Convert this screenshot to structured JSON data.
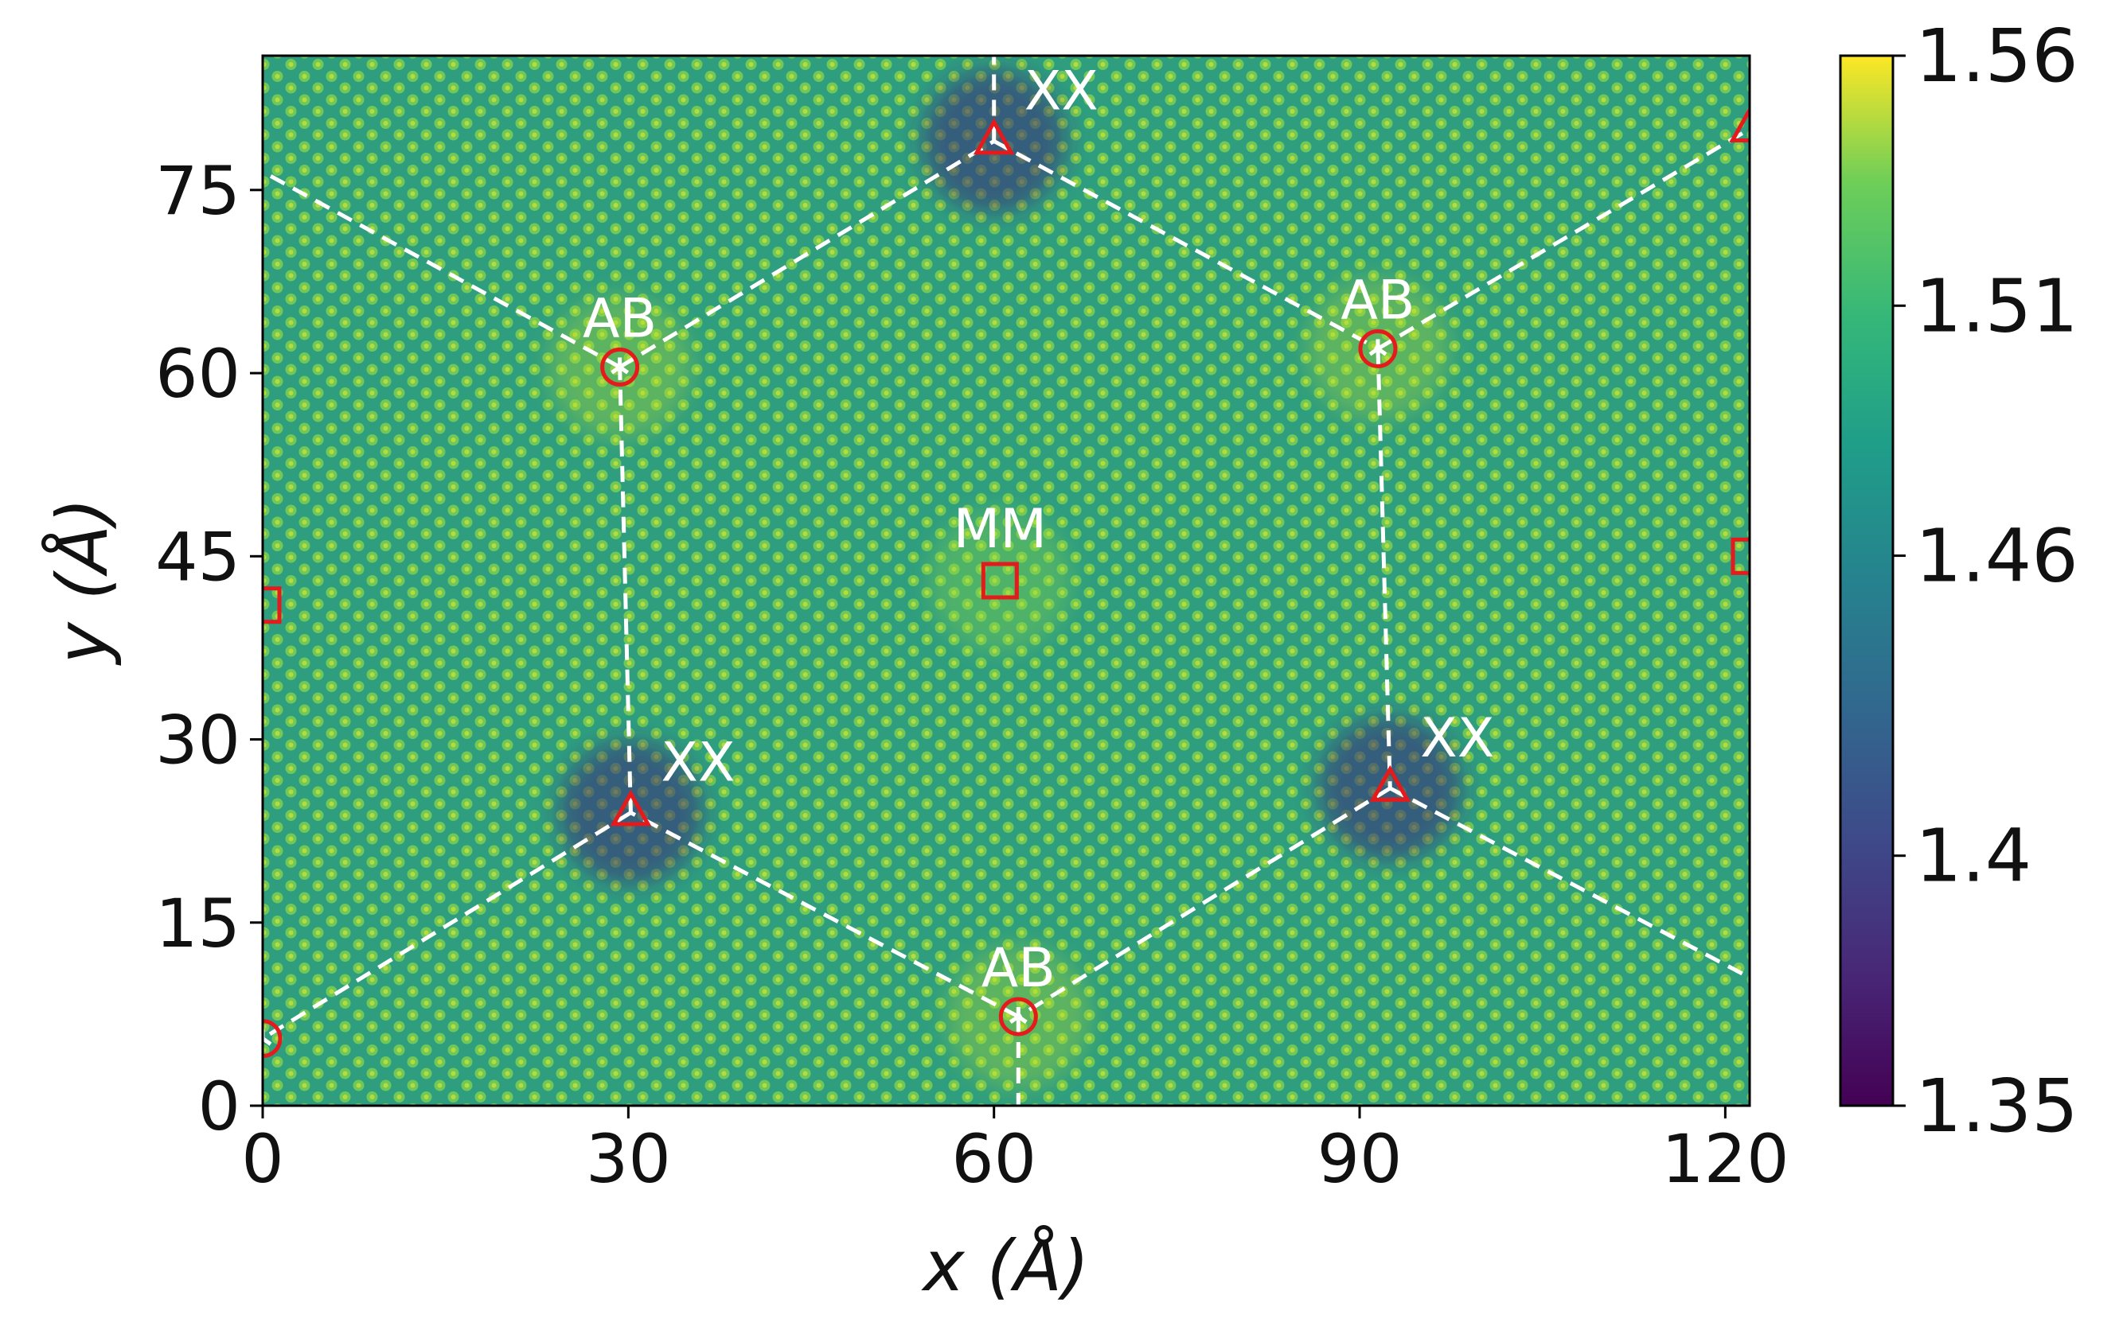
{
  "chart_data": {
    "type": "heatmap",
    "title": "",
    "xlabel": "x (Å)",
    "ylabel": "y (Å)",
    "xlim": [
      0,
      122
    ],
    "ylim": [
      0,
      86
    ],
    "x_ticks": [
      0,
      30,
      60,
      90,
      120
    ],
    "y_ticks": [
      0,
      15,
      30,
      45,
      60,
      75
    ],
    "colormap": "viridis",
    "colorbar": {
      "min": 1.35,
      "max": 1.56,
      "ticks": [
        "1.35",
        "1.4",
        "1.46",
        "1.51",
        "1.56"
      ],
      "tick_values": [
        1.35,
        1.4,
        1.46,
        1.51,
        1.56
      ]
    },
    "moire_domain_boundary": [
      {
        "x": 60.0,
        "y": 79.0
      },
      {
        "x": 91.5,
        "y": 62.0
      },
      {
        "x": 92.5,
        "y": 26.0
      },
      {
        "x": 62.0,
        "y": 7.3
      },
      {
        "x": 30.2,
        "y": 24.0
      },
      {
        "x": 29.3,
        "y": 60.5
      }
    ],
    "stacking_sites": [
      {
        "label": "XX",
        "x": 60.0,
        "y": 79.0,
        "marker": "triangle"
      },
      {
        "label": "AB",
        "x": 91.5,
        "y": 62.0,
        "marker": "circle"
      },
      {
        "label": "XX",
        "x": 92.5,
        "y": 26.0,
        "marker": "triangle"
      },
      {
        "label": "AB",
        "x": 62.0,
        "y": 7.3,
        "marker": "circle"
      },
      {
        "label": "XX",
        "x": 30.2,
        "y": 24.0,
        "marker": "triangle"
      },
      {
        "label": "AB",
        "x": 29.3,
        "y": 60.5,
        "marker": "circle"
      },
      {
        "label": "MM",
        "x": 60.5,
        "y": 43.0,
        "marker": "square"
      }
    ],
    "edge_markers": [
      {
        "x": 0.0,
        "y": 5.5,
        "marker": "circle"
      },
      {
        "x": 122.0,
        "y": 80.0,
        "marker": "triangle"
      },
      {
        "x": 122.0,
        "y": 45.0,
        "marker": "square"
      },
      {
        "x": 0.0,
        "y": 41.0,
        "marker": "square"
      }
    ],
    "colors": {
      "marker": "#e41a1c",
      "boundary": "#ffffff",
      "annotation_text": "#ffffff"
    }
  }
}
